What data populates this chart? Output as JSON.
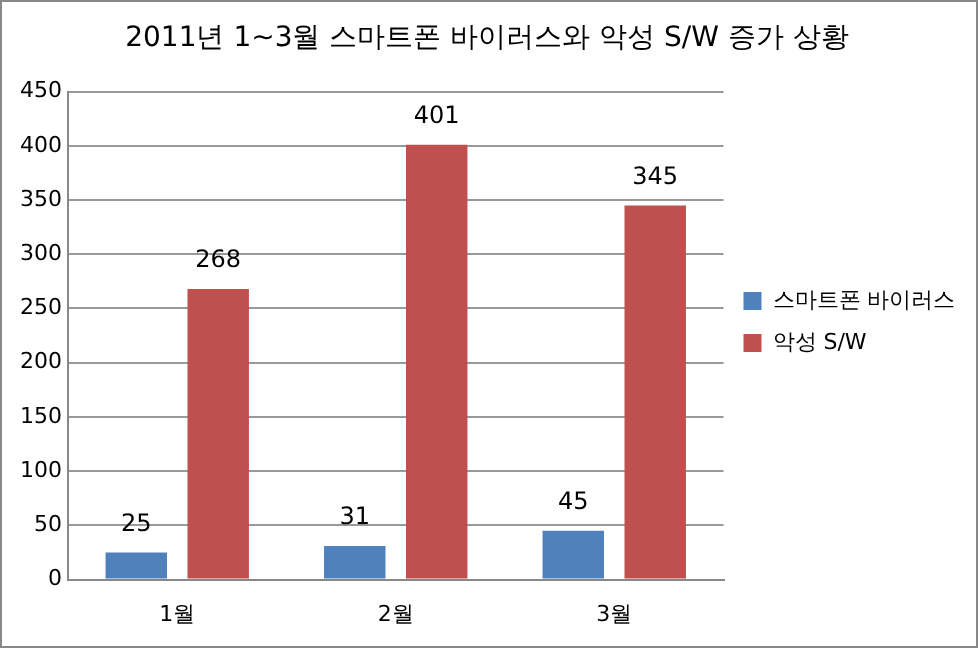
{
  "chart_data": {
    "type": "bar",
    "title": "2011년 1~3월 스마트폰 바이러스와 악성 S/W 증가 상황",
    "categories": [
      "1월",
      "2월",
      "3월"
    ],
    "series": [
      {
        "name": "스마트폰 바이러스",
        "color": "#4f81bd",
        "values": [
          25,
          31,
          45
        ]
      },
      {
        "name": "악성 S/W",
        "color": "#c0504d",
        "values": [
          268,
          401,
          345
        ]
      }
    ],
    "ylim": [
      0,
      450
    ],
    "yticks": [
      0,
      50,
      100,
      150,
      200,
      250,
      300,
      350,
      400,
      450
    ],
    "grid": "y",
    "legend": "right",
    "data_labels": true
  }
}
